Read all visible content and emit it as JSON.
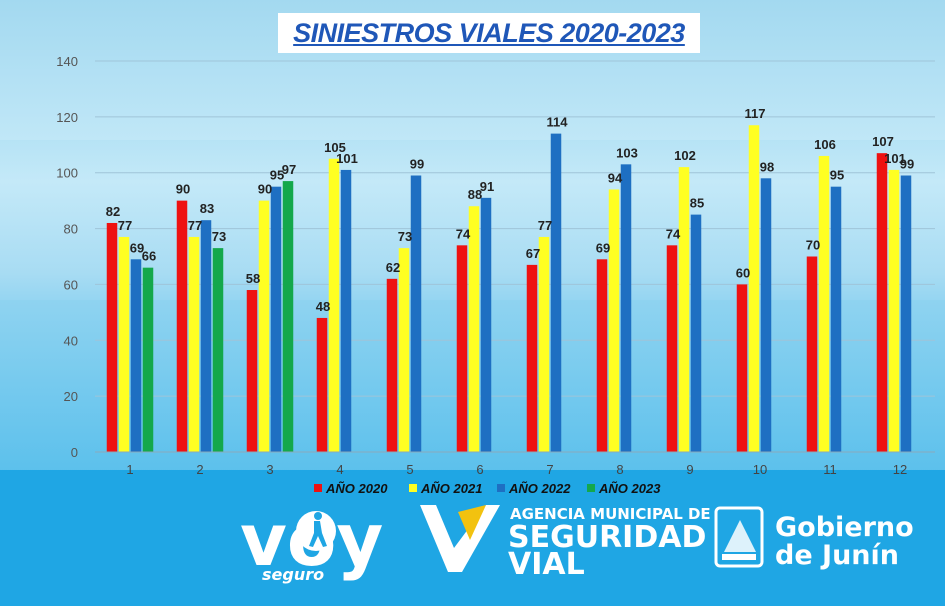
{
  "title": "SINIESTROS VIALES  2020-2023",
  "chart_data": {
    "type": "bar",
    "title": "SINIESTROS VIALES  2020-2023",
    "categories": [
      "1",
      "2",
      "3",
      "4",
      "5",
      "6",
      "7",
      "8",
      "9",
      "10",
      "11",
      "12"
    ],
    "series": [
      {
        "name": "AÑO  2020",
        "color": "#ee1111",
        "values": [
          82,
          90,
          58,
          48,
          62,
          74,
          67,
          69,
          74,
          60,
          70,
          107
        ]
      },
      {
        "name": "AÑO 2021",
        "color": "#ffff22",
        "values": [
          77,
          77,
          90,
          105,
          73,
          88,
          77,
          94,
          102,
          117,
          106,
          101
        ]
      },
      {
        "name": "AÑO 2022",
        "color": "#1e6fc2",
        "values": [
          69,
          83,
          95,
          101,
          99,
          91,
          114,
          103,
          85,
          98,
          95,
          99
        ]
      },
      {
        "name": "AÑO 2023",
        "color": "#14a84b",
        "values": [
          66,
          73,
          97,
          null,
          null,
          null,
          null,
          null,
          null,
          null,
          null,
          null
        ]
      }
    ],
    "yticks": [
      0,
      20,
      40,
      60,
      80,
      100,
      120,
      140
    ],
    "ylim": [
      0,
      140
    ],
    "grid": true,
    "legend": "bottom"
  },
  "footer": {
    "voy_word": "voy",
    "voy_sub": "seguro",
    "agency_line1": "AGENCIA MUNICIPAL DE",
    "agency_line2": "SEGURIDAD",
    "agency_line3": "VIAL",
    "gov_line1": "Gobierno",
    "gov_line2": "de Junín"
  }
}
